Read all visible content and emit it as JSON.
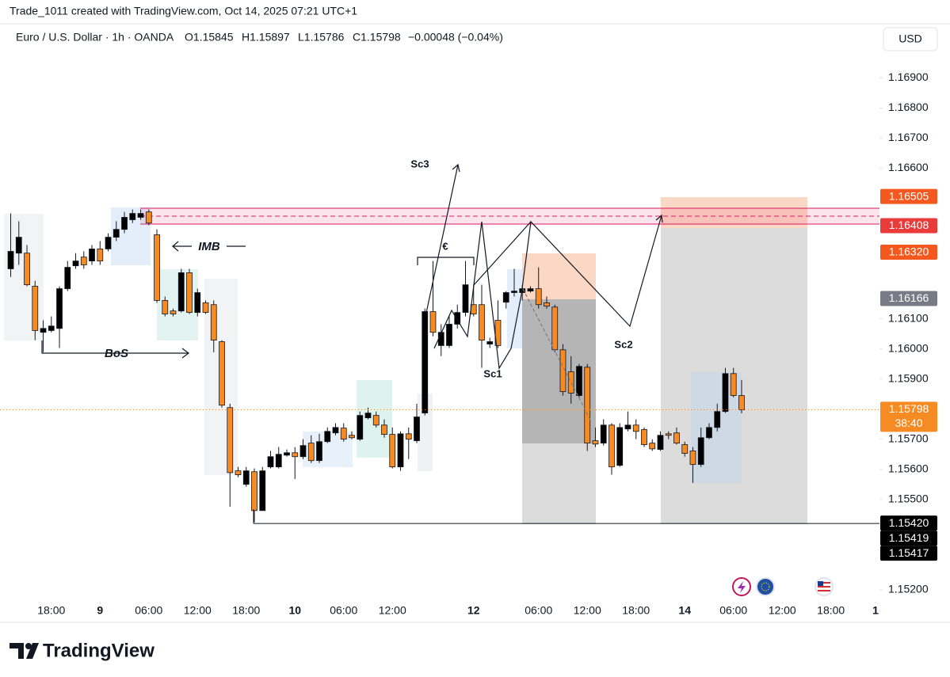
{
  "chart_data": {
    "type": "candlestick",
    "watermark": "Trade_1011 created with TradingView.com, Oct 14, 2025 07:21 UTC+1",
    "symbol": "Euro / U.S. Dollar · 1h · OANDA",
    "ohlc_labels": [
      "O1.15845",
      "H1.15897",
      "L1.15786",
      "C1.15798"
    ],
    "change": "−0.00048 (−0.04%)",
    "currency": "USD",
    "brand": "TradingView",
    "annotations": [
      "Sc3",
      "Sc1",
      "Sc2",
      "BoS",
      "IMB",
      "€"
    ],
    "up_color": "#000000",
    "down_color": "#f68a23",
    "grid": false,
    "xlim": [
      -1.32,
      106.98
    ],
    "ylim": [
      1.1516,
      1.1708
    ],
    "xticks": [
      {
        "value": 5,
        "label": "18:00"
      },
      {
        "value": 11,
        "label": "9"
      },
      {
        "value": 17,
        "label": "06:00"
      },
      {
        "value": 23,
        "label": "12:00"
      },
      {
        "value": 29,
        "label": "18:00"
      },
      {
        "value": 35,
        "label": "10"
      },
      {
        "value": 41,
        "label": "06:00"
      },
      {
        "value": 47,
        "label": "12:00"
      },
      {
        "value": 57,
        "label": "12"
      },
      {
        "value": 65,
        "label": "06:00"
      },
      {
        "value": 71,
        "label": "12:00"
      },
      {
        "value": 77,
        "label": "18:00"
      },
      {
        "value": 83,
        "label": "14"
      },
      {
        "value": 89,
        "label": "06:00"
      },
      {
        "value": 95,
        "label": "12:00"
      },
      {
        "value": 101,
        "label": "18:00"
      },
      {
        "value": 106.5,
        "label": "1"
      }
    ],
    "yticks": [
      {
        "value": 1.169,
        "label": "1.16900"
      },
      {
        "value": 1.168,
        "label": "1.16800"
      },
      {
        "value": 1.167,
        "label": "1.16700"
      },
      {
        "value": 1.166,
        "label": "1.16600"
      },
      {
        "value": 1.161,
        "label": "1.16100"
      },
      {
        "value": 1.16,
        "label": "1.16000"
      },
      {
        "value": 1.159,
        "label": "1.15900"
      },
      {
        "value": 1.157,
        "label": "1.15700"
      },
      {
        "value": 1.156,
        "label": "1.15600"
      },
      {
        "value": 1.155,
        "label": "1.15500"
      },
      {
        "value": 1.152,
        "label": "1.15200"
      }
    ],
    "price_labels": [
      {
        "value": 1.16505,
        "label": "1.16505",
        "color": "#f4581e"
      },
      {
        "value": 1.16408,
        "label": "1.16408",
        "color": "#ea3b3b"
      },
      {
        "value": 1.1632,
        "label": "1.16320",
        "color": "#f4581e"
      },
      {
        "value": 1.16166,
        "label": "1.16166",
        "color": "#787b86"
      },
      {
        "value": 1.15798,
        "label": "1.15798",
        "color": "#f68a23"
      },
      {
        "value": 1.1542,
        "label": "1.15420",
        "color": "#000000"
      },
      {
        "value": 1.15419,
        "label": "1.15419",
        "color": "#000000"
      },
      {
        "value": 1.15417,
        "label": "1.15417",
        "color": "#000000"
      }
    ],
    "countdown": "38:40",
    "open": [
      1.16266,
      1.16318,
      1.16318,
      1.16208,
      1.16055,
      1.16061,
      1.16068,
      1.162,
      1.16276,
      1.16305,
      1.16292,
      1.16332,
      1.16332,
      1.16371,
      1.16397,
      1.16429,
      1.16437,
      1.16455,
      1.16379,
      1.16161,
      1.16126,
      1.16126,
      1.16253,
      1.16121,
      1.16153,
      1.16147,
      1.16024,
      1.15805,
      1.15595,
      1.1555,
      1.15592,
      1.15463,
      1.15608,
      1.15608,
      1.15647,
      1.15655,
      1.15642,
      1.15687,
      1.15629,
      1.15692,
      1.15721,
      1.15737,
      1.15713,
      1.157,
      1.15771,
      1.15779,
      1.15747,
      1.15716,
      1.15608,
      1.15718,
      1.15695,
      1.15787,
      1.16124,
      1.16011,
      1.16011,
      1.16082,
      1.16121,
      1.16147,
      1.16147,
      1.16016,
      1.16095,
      1.16155,
      1.16187,
      1.16187,
      1.16192,
      1.162,
      1.16153,
      1.16139,
      1.15997,
      1.15924,
      1.15845,
      1.15939,
      1.15695,
      1.15687,
      1.15747,
      1.15613,
      1.15734,
      1.15747,
      1.15732,
      1.15687,
      1.15666,
      1.15718,
      1.15721,
      1.15682,
      1.15661,
      1.15616,
      1.15705,
      1.15739,
      1.15792,
      1.15918,
      1.15845
    ],
    "high": [
      1.1645,
      1.16424,
      1.16345,
      1.16226,
      1.16095,
      1.16108,
      1.16208,
      1.16292,
      1.16318,
      1.16324,
      1.16345,
      1.16358,
      1.16384,
      1.16424,
      1.16455,
      1.16463,
      1.16463,
      1.16463,
      1.16397,
      1.16174,
      1.16134,
      1.16266,
      1.16266,
      1.162,
      1.16161,
      1.16161,
      1.16029,
      1.15818,
      1.15608,
      1.15608,
      1.15603,
      1.15608,
      1.15661,
      1.15674,
      1.15666,
      1.15674,
      1.157,
      1.15713,
      1.15718,
      1.15739,
      1.15753,
      1.15753,
      1.15726,
      1.15792,
      1.15805,
      1.15792,
      1.15766,
      1.15739,
      1.15726,
      1.15739,
      1.15818,
      1.16134,
      1.16292,
      1.16082,
      1.16108,
      1.16147,
      1.16292,
      1.16213,
      1.16213,
      1.16037,
      1.16161,
      1.16192,
      1.16266,
      1.16213,
      1.16208,
      1.16271,
      1.16174,
      1.16147,
      1.16016,
      1.15976,
      1.1595,
      1.1595,
      1.15739,
      1.15766,
      1.15753,
      1.15753,
      1.15792,
      1.15766,
      1.15739,
      1.157,
      1.15726,
      1.15726,
      1.15739,
      1.15692,
      1.15674,
      1.15739,
      1.15753,
      1.15818,
      1.15937,
      1.15937,
      1.15897
    ],
    "low": [
      1.16239,
      1.16279,
      1.16208,
      1.16029,
      1.15989,
      1.16055,
      1.16003,
      1.16192,
      1.16266,
      1.16266,
      1.16279,
      1.16279,
      1.16324,
      1.16358,
      1.16384,
      1.16418,
      1.16429,
      1.16411,
      1.16153,
      1.16108,
      1.16108,
      1.16121,
      1.16116,
      1.16108,
      1.16116,
      1.15989,
      1.15805,
      1.15476,
      1.15574,
      1.15542,
      1.15424,
      1.15463,
      1.15603,
      1.15603,
      1.15642,
      1.15568,
      1.15634,
      1.15621,
      1.15621,
      1.15687,
      1.15713,
      1.15692,
      1.157,
      1.15695,
      1.15766,
      1.15739,
      1.15705,
      1.15603,
      1.15595,
      1.15634,
      1.15687,
      1.15779,
      1.16042,
      1.15976,
      1.16003,
      1.16068,
      1.16108,
      1.16108,
      1.15937,
      1.16003,
      1.16003,
      1.16134,
      1.16174,
      1.16161,
      1.16187,
      1.16134,
      1.16134,
      1.15989,
      1.15845,
      1.15818,
      1.15839,
      1.15661,
      1.15674,
      1.15679,
      1.15582,
      1.15608,
      1.15726,
      1.157,
      1.15674,
      1.15661,
      1.15661,
      1.157,
      1.15682,
      1.15642,
      1.15555,
      1.15608,
      1.157,
      1.15726,
      1.15787,
      1.15839,
      1.15786
    ],
    "close": [
      1.16324,
      1.16371,
      1.16213,
      1.16061,
      1.16068,
      1.16076,
      1.162,
      1.16271,
      1.16292,
      1.16279,
      1.16332,
      1.16292,
      1.16371,
      1.16397,
      1.16437,
      1.1645,
      1.1645,
      1.16418,
      1.16161,
      1.16116,
      1.16116,
      1.16253,
      1.16121,
      1.16187,
      1.16121,
      1.16029,
      1.15813,
      1.15589,
      1.15582,
      1.15595,
      1.15463,
      1.15595,
      1.15642,
      1.1565,
      1.15655,
      1.15642,
      1.15679,
      1.15629,
      1.15692,
      1.15726,
      1.15739,
      1.157,
      1.15705,
      1.15779,
      1.15787,
      1.15747,
      1.15716,
      1.15608,
      1.15718,
      1.157,
      1.15774,
      1.16124,
      1.16055,
      1.16055,
      1.16082,
      1.16121,
      1.16213,
      1.16116,
      1.16029,
      1.16024,
      1.16011,
      1.16187,
      1.16192,
      1.162,
      1.162,
      1.16147,
      1.16142,
      1.15997,
      1.15858,
      1.15853,
      1.15942,
      1.15687,
      1.15684,
      1.15747,
      1.15608,
      1.15739,
      1.15747,
      1.15726,
      1.15682,
      1.15668,
      1.15713,
      1.15713,
      1.15687,
      1.15653,
      1.15616,
      1.15705,
      1.15739,
      1.15792,
      1.15918,
      1.15845,
      1.15798
    ]
  }
}
